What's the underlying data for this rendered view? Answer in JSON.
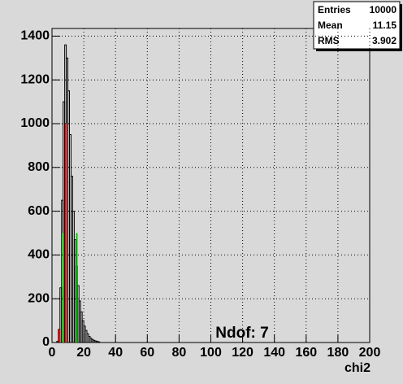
{
  "chart_data": {
    "type": "histogram",
    "xlabel": "chi2",
    "annotation": "Ndof: 7",
    "bins": [
      0,
      1,
      2,
      3,
      4,
      5,
      6,
      7,
      8,
      9,
      10,
      11,
      12,
      13,
      14,
      15,
      16,
      17,
      18,
      19,
      20,
      21,
      22,
      23,
      24,
      25,
      26,
      27,
      28,
      29,
      30
    ],
    "values": [
      0,
      0,
      0,
      5,
      60,
      250,
      650,
      1100,
      1360,
      1300,
      1150,
      950,
      760,
      600,
      470,
      350,
      260,
      190,
      140,
      100,
      75,
      55,
      40,
      28,
      20,
      14,
      10,
      7,
      5,
      3
    ],
    "color": "#000000",
    "vlines": [
      {
        "x": 4.8,
        "y": 60,
        "color": "#ff0000"
      },
      {
        "x": 7.2,
        "y": 500,
        "color": "#00cc00"
      },
      {
        "x": 8.8,
        "y": 1000,
        "color": "#ff0000"
      },
      {
        "x": 15.6,
        "y": 500,
        "color": "#00cc00"
      }
    ],
    "xlim": [
      0,
      200
    ],
    "xticks": [
      0,
      20,
      40,
      60,
      80,
      100,
      120,
      140,
      160,
      180,
      200
    ],
    "ylim": [
      0,
      1435
    ],
    "yticks": [
      0,
      200,
      400,
      600,
      800,
      1000,
      1200,
      1400
    ],
    "grid": true,
    "stats": {
      "labels": [
        "Entries",
        "Mean",
        "RMS"
      ],
      "values": [
        10000,
        11.15,
        3.902
      ]
    }
  }
}
